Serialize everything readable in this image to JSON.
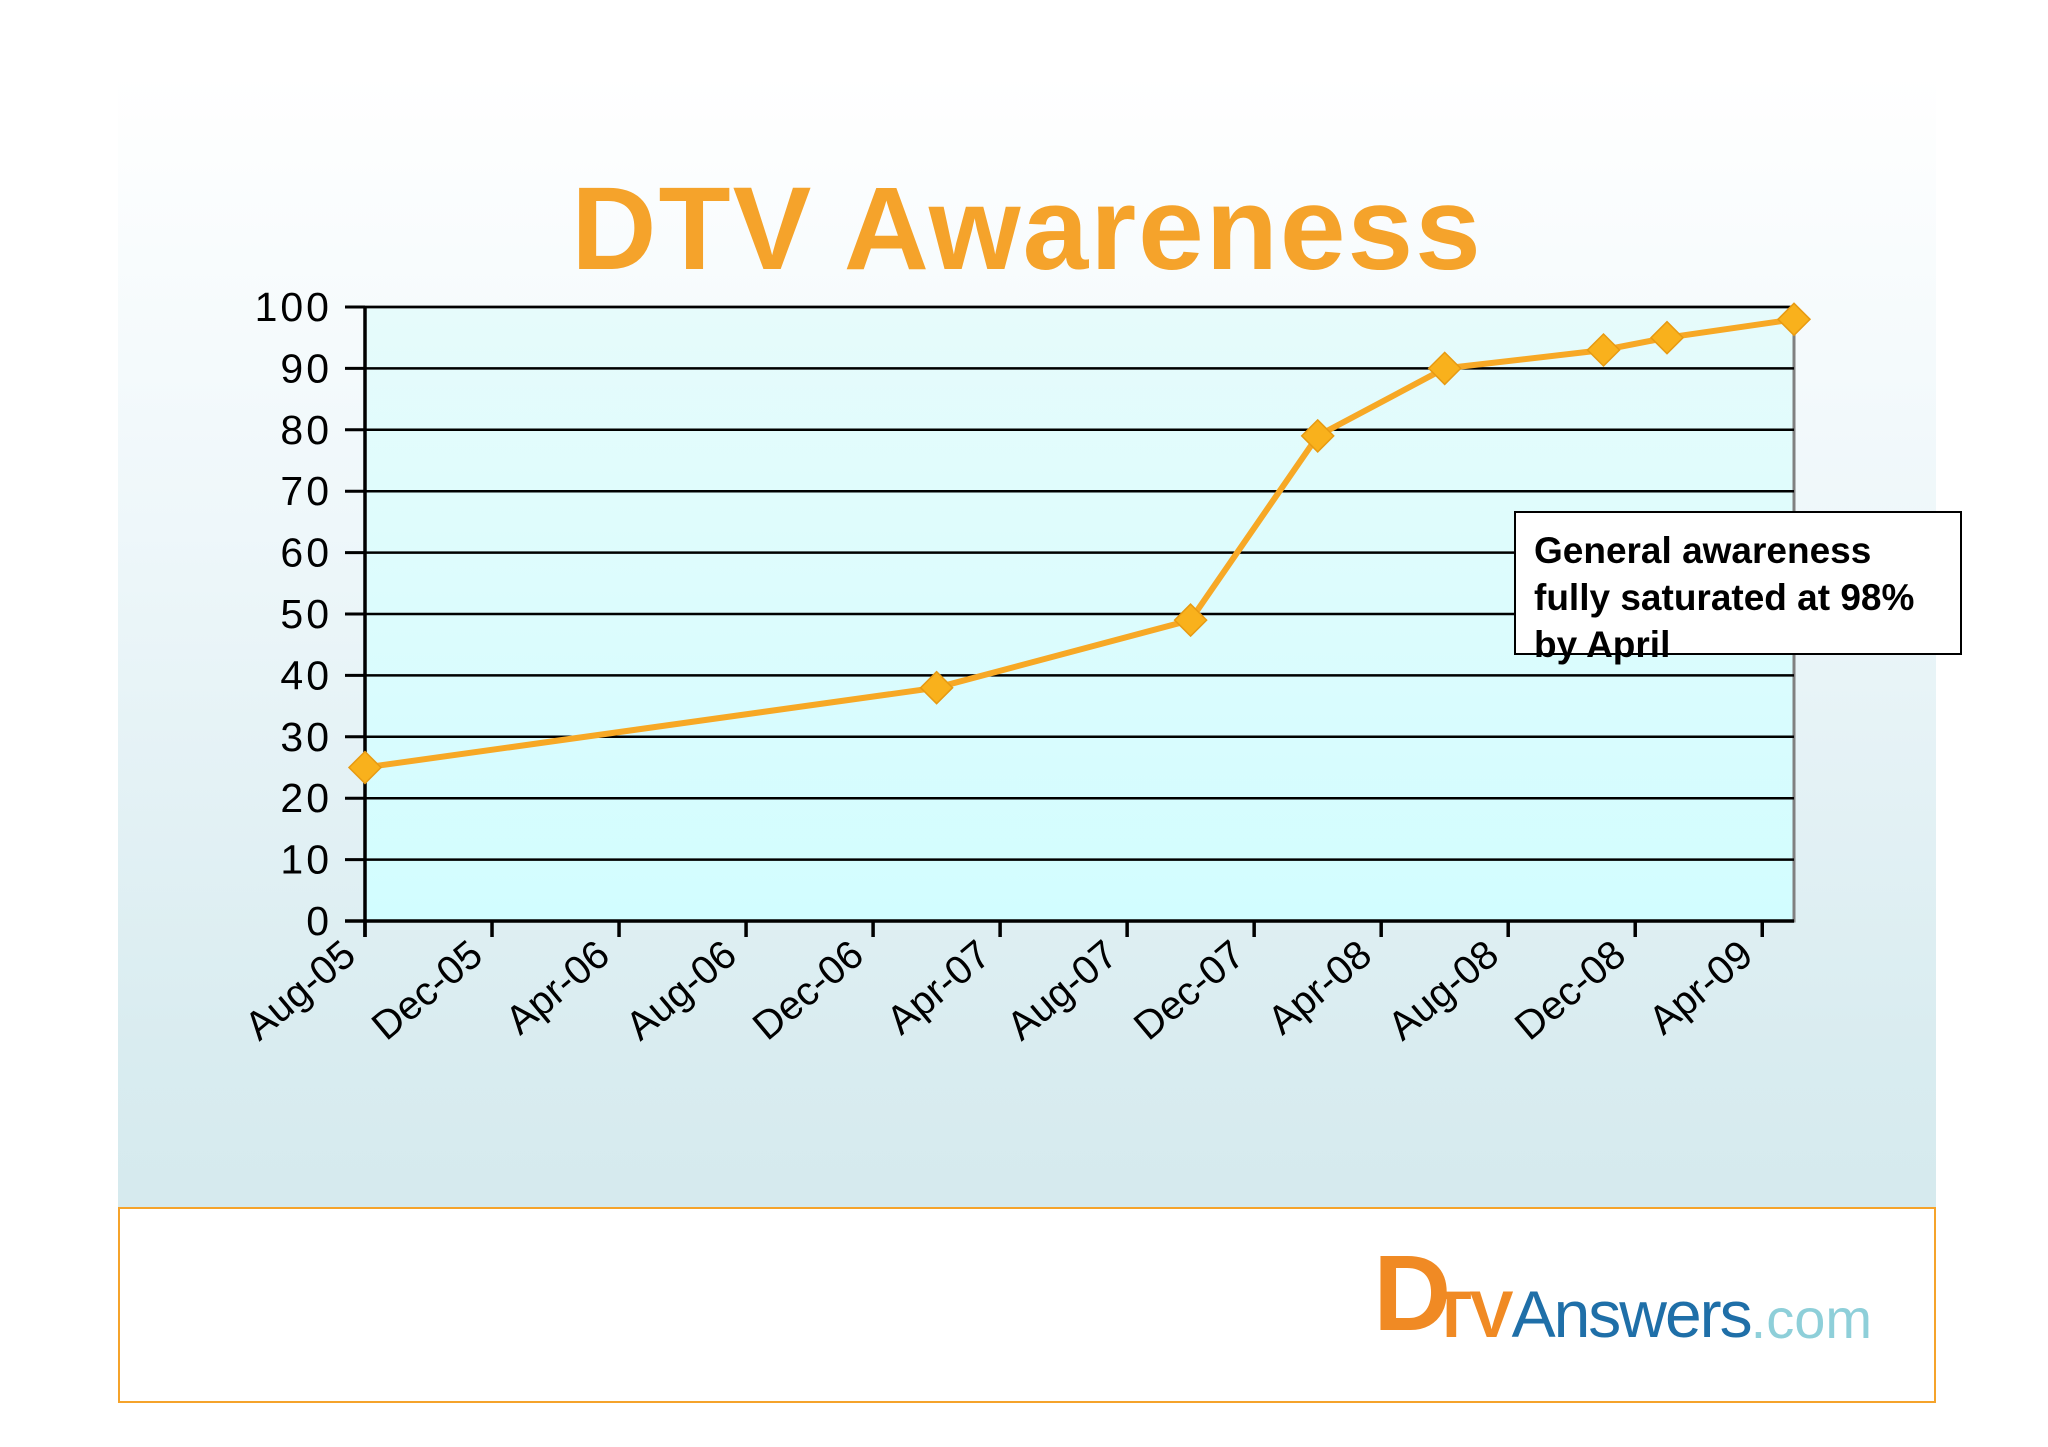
{
  "slide": {
    "title": "DTV Awareness",
    "annotation": "General awareness fully saturated at 98% by April",
    "logo": {
      "initial": "D",
      "tv": "TV",
      "answers": "Answers",
      "tld": ".com"
    }
  },
  "colors": {
    "title": "#f5a32b",
    "line": "#f7a825",
    "marker": "#f9b11c",
    "plot_top": "#e6fbfb",
    "plot_bottom": "#d2fdff",
    "footer_border": "#f5a32b",
    "logo_orange": "#f08a24",
    "logo_blue": "#1f6fa8",
    "logo_light": "#8ecfd9"
  },
  "chart_data": {
    "type": "line",
    "title": "DTV Awareness",
    "xlabel": "",
    "ylabel": "",
    "ylim": [
      0,
      100
    ],
    "yticks": [
      0,
      10,
      20,
      30,
      40,
      50,
      60,
      70,
      80,
      90,
      100
    ],
    "xticks": [
      "Aug-05",
      "Dec-05",
      "Apr-06",
      "Aug-06",
      "Dec-06",
      "Apr-07",
      "Aug-07",
      "Dec-07",
      "Apr-08",
      "Aug-08",
      "Dec-08",
      "Apr-09"
    ],
    "xlim": [
      "2005-08",
      "2009-05"
    ],
    "grid": true,
    "legend": "none",
    "series": [
      {
        "points": [
          {
            "x": "2005-08",
            "y": 25
          },
          {
            "x": "2007-02",
            "y": 38
          },
          {
            "x": "2007-10",
            "y": 49
          },
          {
            "x": "2008-02",
            "y": 79
          },
          {
            "x": "2008-06",
            "y": 90
          },
          {
            "x": "2008-11",
            "y": 93
          },
          {
            "x": "2009-01",
            "y": 95
          },
          {
            "x": "2009-05",
            "y": 98
          }
        ]
      }
    ]
  }
}
